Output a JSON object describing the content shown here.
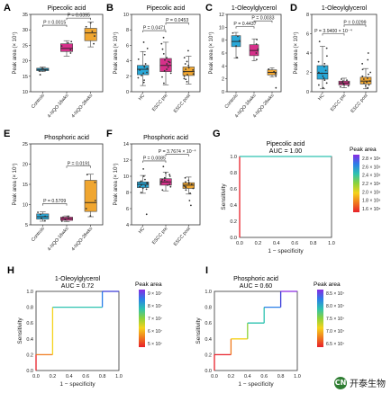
{
  "panels": [
    {
      "letter": "A",
      "kind": "box",
      "title": "Pipecolic acid",
      "ylabel": "Peak area (× 10⁷)",
      "ylim": [
        10,
        35
      ],
      "yticks": [
        10,
        15,
        20,
        25,
        30,
        35
      ],
      "groups": [
        {
          "label": "Controls",
          "color": "#29a8d8",
          "q1": 16.8,
          "med": 17.2,
          "q3": 17.6,
          "lo": 16.5,
          "hi": 18.0,
          "pts": [
            16.7,
            17.0,
            17.3,
            17.6,
            15.5
          ]
        },
        {
          "label": "4-NQO-16wks",
          "color": "#d6308a",
          "q1": 23,
          "med": 24,
          "q3": 25.5,
          "lo": 21.5,
          "hi": 26.5,
          "pts": [
            22.5,
            23.5,
            24.8,
            25.8,
            26.2
          ]
        },
        {
          "label": "4-NQO-26wks",
          "color": "#f0a630",
          "q1": 26.5,
          "med": 29,
          "q3": 30.5,
          "lo": 24.5,
          "hi": 32.5,
          "pts": [
            25.5,
            28,
            29.5,
            31,
            32.2
          ]
        }
      ],
      "pvals": [
        {
          "from": 0,
          "to": 1,
          "text": "P = 0.0015",
          "y": 31.5
        },
        {
          "from": 1,
          "to": 2,
          "text": "P = 0.0395",
          "y": 33.8
        }
      ]
    },
    {
      "letter": "B",
      "kind": "box",
      "title": "Pipecolic acid",
      "ylabel": "Peak area (× 10⁷)",
      "ylim": [
        0,
        10
      ],
      "yticks": [
        0,
        2,
        4,
        6,
        8,
        10
      ],
      "groups": [
        {
          "label": "HC",
          "color": "#29a8d8",
          "q1": 2.2,
          "med": 2.9,
          "q3": 3.4,
          "lo": 0.8,
          "hi": 5.2,
          "pts": [
            1.2,
            1.8,
            2.1,
            2.5,
            2.8,
            3.0,
            3.2,
            3.6,
            4.2,
            4.8,
            5.6,
            6.4,
            2.4,
            3.3,
            1.5
          ]
        },
        {
          "label": "ESCC pre",
          "color": "#d6308a",
          "q1": 2.6,
          "med": 3.4,
          "q3": 4.3,
          "lo": 0.9,
          "hi": 6.4,
          "pts": [
            1.1,
            1.9,
            2.4,
            2.9,
            3.2,
            3.6,
            3.9,
            4.4,
            4.9,
            5.5,
            6.2,
            2.7,
            3.8,
            4.1,
            7.0
          ]
        },
        {
          "label": "ESCC post",
          "color": "#f0a630",
          "q1": 2.1,
          "med": 2.6,
          "q3": 3.2,
          "lo": 1.0,
          "hi": 4.6,
          "pts": [
            1.3,
            1.7,
            2.0,
            2.3,
            2.6,
            2.9,
            3.1,
            3.4,
            3.9,
            4.4,
            2.2,
            2.8,
            5.3,
            1.6,
            3.6
          ]
        }
      ],
      "pvals": [
        {
          "from": 0,
          "to": 1,
          "text": "P = 0.0471",
          "y": 7.9
        },
        {
          "from": 1,
          "to": 2,
          "text": "P = 0.0453",
          "y": 8.9
        }
      ]
    },
    {
      "letter": "C",
      "kind": "box",
      "title": "1-Oleoylglycerol",
      "ylabel": "Peak area (× 10⁷)",
      "ylim": [
        0,
        12
      ],
      "yticks": [
        0,
        2,
        4,
        6,
        8,
        10,
        12
      ],
      "groups": [
        {
          "label": "Controls",
          "color": "#29a8d8",
          "q1": 7.0,
          "med": 7.8,
          "q3": 8.7,
          "lo": 5.2,
          "hi": 9.2,
          "pts": [
            5.3,
            7.1,
            7.9,
            8.6,
            9.1
          ]
        },
        {
          "label": "4-NQO-16wks",
          "color": "#d6308a",
          "q1": 5.6,
          "med": 6.4,
          "q3": 7.3,
          "lo": 4.8,
          "hi": 8.2,
          "pts": [
            5.0,
            6.0,
            6.6,
            7.4,
            8.1
          ]
        },
        {
          "label": "4-NQO-26wks",
          "color": "#f0a630",
          "q1": 2.6,
          "med": 3.0,
          "q3": 3.4,
          "lo": 2.3,
          "hi": 3.7,
          "pts": [
            2.4,
            2.8,
            3.1,
            3.5,
            0.6
          ]
        }
      ],
      "pvals": [
        {
          "from": 0,
          "to": 1,
          "text": "P = 0.4437",
          "y": 10.1
        },
        {
          "from": 1,
          "to": 2,
          "text": "P = 0.0033",
          "y": 11.0
        }
      ]
    },
    {
      "letter": "D",
      "kind": "box",
      "title": "1-Oleoylglycerol",
      "ylabel": "Peak area (× 10⁷)",
      "ylim": [
        0,
        8
      ],
      "yticks": [
        0,
        2,
        4,
        6,
        8
      ],
      "groups": [
        {
          "label": "HC",
          "color": "#29a8d8",
          "q1": 1.3,
          "med": 1.9,
          "q3": 2.7,
          "lo": 0.3,
          "hi": 4.7,
          "pts": [
            0.4,
            0.9,
            1.2,
            1.6,
            1.9,
            2.2,
            2.6,
            3.1,
            3.7,
            4.5,
            1.4,
            2.0,
            5.2,
            0.7,
            2.9
          ]
        },
        {
          "label": "ESCC pre",
          "color": "#d6308a",
          "q1": 0.7,
          "med": 0.9,
          "q3": 1.1,
          "lo": 0.4,
          "hi": 1.4,
          "pts": [
            0.5,
            0.7,
            0.8,
            0.9,
            1.0,
            1.1,
            1.3,
            0.6,
            1.2,
            0.95
          ]
        },
        {
          "label": "ESCC post",
          "color": "#f0a630",
          "q1": 0.8,
          "med": 1.1,
          "q3": 1.5,
          "lo": 0.3,
          "hi": 2.4,
          "pts": [
            0.4,
            0.7,
            0.9,
            1.1,
            1.3,
            1.6,
            2.0,
            2.3,
            2.9,
            3.3,
            1.0,
            1.4,
            0.6,
            4.0,
            1.8
          ]
        }
      ],
      "pvals": [
        {
          "from": 0,
          "to": 1,
          "text": "P = 3.9400 × 10⁻⁴",
          "y": 6.0
        },
        {
          "from": 1,
          "to": 2,
          "text": "P = 0.0299",
          "y": 6.9
        }
      ]
    },
    {
      "letter": "E",
      "kind": "box",
      "title": "Phosphoric acid",
      "ylabel": "Peak area (× 10⁷)",
      "ylim": [
        5,
        25
      ],
      "yticks": [
        5,
        10,
        15,
        20,
        25
      ],
      "groups": [
        {
          "label": "Controls",
          "color": "#29a8d8",
          "q1": 6.4,
          "med": 7.0,
          "q3": 7.7,
          "lo": 5.9,
          "hi": 8.2,
          "pts": [
            6.0,
            6.6,
            7.1,
            7.6,
            8.1
          ]
        },
        {
          "label": "4-NQO-16wks",
          "color": "#d6308a",
          "q1": 6.1,
          "med": 6.5,
          "q3": 6.9,
          "lo": 5.8,
          "hi": 7.2,
          "pts": [
            5.9,
            6.3,
            6.6,
            6.9,
            7.1
          ]
        },
        {
          "label": "4-NQO-26wks",
          "color": "#f0a630",
          "q1": 8.3,
          "med": 10.5,
          "q3": 16.0,
          "lo": 7.0,
          "hi": 17.5,
          "pts": [
            7.2,
            9.0,
            11.0,
            15.5,
            17.4
          ]
        }
      ],
      "pvals": [
        {
          "from": 0,
          "to": 1,
          "text": "P = 0.5709",
          "y": 10.2
        },
        {
          "from": 1,
          "to": 2,
          "text": "P = 0.0191",
          "y": 19.5
        }
      ]
    },
    {
      "letter": "F",
      "kind": "box",
      "title": "Phosphoric acid",
      "ylabel": "Peak area (× 10⁷)",
      "ylim": [
        4,
        14
      ],
      "yticks": [
        4,
        6,
        8,
        10,
        12,
        14
      ],
      "groups": [
        {
          "label": "HC",
          "color": "#29a8d8",
          "q1": 8.6,
          "med": 9.0,
          "q3": 9.3,
          "lo": 7.9,
          "hi": 10.1,
          "pts": [
            8.0,
            8.4,
            8.7,
            8.9,
            9.1,
            9.3,
            9.6,
            10.0,
            8.5,
            9.2,
            5.3,
            10.9,
            8.8,
            9.4
          ]
        },
        {
          "label": "ESCC pre",
          "color": "#d6308a",
          "q1": 8.9,
          "med": 9.3,
          "q3": 9.7,
          "lo": 8.2,
          "hi": 10.5,
          "pts": [
            8.3,
            8.7,
            9.0,
            9.3,
            9.5,
            9.8,
            10.2,
            10.4,
            9.1,
            9.6,
            11.2,
            8.9,
            9.4,
            10.0
          ]
        },
        {
          "label": "ESCC post",
          "color": "#f0a630",
          "q1": 8.5,
          "med": 8.9,
          "q3": 9.2,
          "lo": 7.8,
          "hi": 9.9,
          "pts": [
            7.9,
            8.3,
            8.6,
            8.8,
            9.0,
            9.2,
            9.5,
            9.8,
            8.5,
            9.1,
            7.0,
            6.4,
            8.7,
            9.3
          ]
        }
      ],
      "pvals": [
        {
          "from": 0,
          "to": 1,
          "text": "P = 0.0085",
          "y": 11.9
        },
        {
          "from": 1,
          "to": 2,
          "text": "P = 3.7674 × 10⁻⁴",
          "y": 12.7
        }
      ]
    },
    {
      "letter": "G",
      "kind": "roc",
      "title": "Pipecolic acid",
      "subtitle": "AUC = 1.00",
      "xlabel": "1 − specificity",
      "ylabel": "Sensitivity",
      "roc": [
        [
          0,
          0
        ],
        [
          0,
          1
        ],
        [
          1,
          1
        ]
      ],
      "legend_title": "Peak area",
      "legend_ticks": [
        "2.8 × 10⁸",
        "2.6 × 10⁸",
        "2.4 × 10⁸",
        "2.2 × 10⁸",
        "2.0 × 10⁸",
        "1.8 × 10⁸",
        "1.6 × 10⁸"
      ]
    },
    {
      "letter": "H",
      "kind": "roc",
      "title": "1-Oleoylglycerol",
      "subtitle": "AUC = 0.72",
      "xlabel": "1 − specificity",
      "ylabel": "Sensitivity",
      "roc": [
        [
          0,
          0
        ],
        [
          0,
          0.2
        ],
        [
          0.2,
          0.2
        ],
        [
          0.2,
          0.8
        ],
        [
          0.8,
          0.8
        ],
        [
          0.8,
          1.0
        ],
        [
          1,
          1
        ]
      ],
      "legend_title": "Peak area",
      "legend_ticks": [
        "9 × 10⁷",
        "8 × 10⁷",
        "7 × 10⁷",
        "6 × 10⁷",
        "5 × 10⁷"
      ]
    },
    {
      "letter": "I",
      "kind": "roc",
      "title": "Phosphoric acid",
      "subtitle": "AUC = 0.60",
      "xlabel": "1 − specificity",
      "ylabel": "Sensitivity",
      "roc": [
        [
          0,
          0
        ],
        [
          0,
          0.2
        ],
        [
          0.2,
          0.2
        ],
        [
          0.2,
          0.4
        ],
        [
          0.4,
          0.4
        ],
        [
          0.4,
          0.6
        ],
        [
          0.6,
          0.6
        ],
        [
          0.6,
          0.8
        ],
        [
          0.8,
          0.8
        ],
        [
          0.8,
          1.0
        ],
        [
          1,
          1
        ]
      ],
      "legend_title": "Peak area",
      "legend_ticks": [
        "8.5 × 10⁷",
        "8.0 × 10⁷",
        "7.5 × 10⁷",
        "7.0 × 10⁷",
        "6.5 × 10⁷"
      ]
    }
  ],
  "roc_ticks": [
    "0.0",
    "0.2",
    "0.4",
    "0.6",
    "0.8",
    "1.0"
  ],
  "watermark": {
    "badge": "CN",
    "text": "开泰生物"
  }
}
